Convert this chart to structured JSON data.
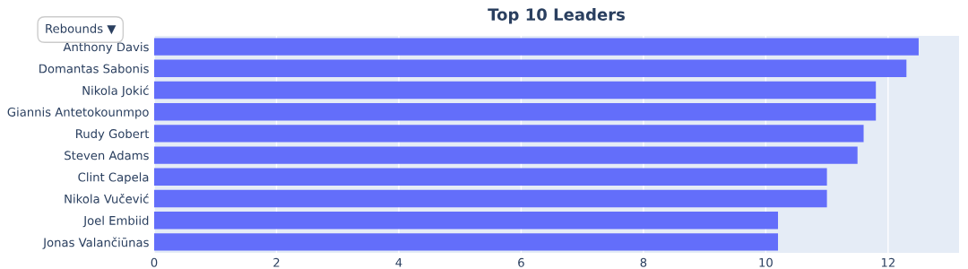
{
  "chart_data": {
    "type": "bar",
    "orientation": "horizontal",
    "title": "Top 10 Leaders",
    "categories": [
      "Anthony Davis",
      "Domantas Sabonis",
      "Nikola Jokić",
      "Giannis Antetokounmpo",
      "Rudy Gobert",
      "Steven Adams",
      "Clint Capela",
      "Nikola Vučević",
      "Joel Embiid",
      "Jonas Valančiūnas"
    ],
    "values": [
      12.5,
      12.3,
      11.8,
      11.8,
      11.6,
      11.5,
      11.0,
      11.0,
      10.2,
      10.2
    ],
    "color": "#636efa",
    "xlim": [
      0,
      13.16
    ],
    "xticks": [
      0,
      2,
      4,
      6,
      8,
      10,
      12
    ],
    "grid": "x",
    "annotations": [
      "Rebounds ▼"
    ]
  }
}
